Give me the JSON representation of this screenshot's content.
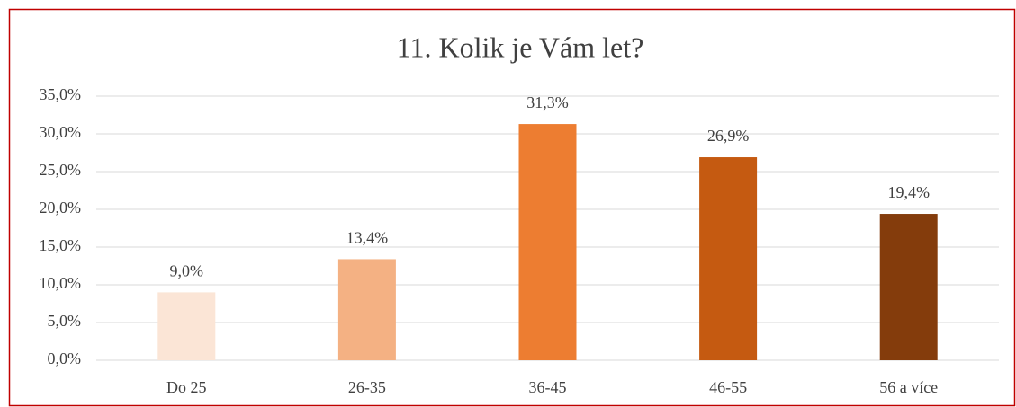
{
  "chart_data": {
    "type": "bar",
    "title": "11. Kolik je Vám let?",
    "categories": [
      "Do 25",
      "26-35",
      "36-45",
      "46-55",
      "56 a více"
    ],
    "values": [
      9.0,
      13.4,
      31.3,
      26.9,
      19.4
    ],
    "value_labels": [
      "9,0%",
      "13,4%",
      "31,3%",
      "26,9%",
      "19,4%"
    ],
    "colors": [
      "#fbe5d6",
      "#f4b183",
      "#ed7d31",
      "#c55a11",
      "#843c0c"
    ],
    "ylim": [
      0,
      35
    ],
    "yticks": [
      {
        "value": 0,
        "label": "0,0%"
      },
      {
        "value": 5,
        "label": "5,0%"
      },
      {
        "value": 10,
        "label": "10,0%"
      },
      {
        "value": 15,
        "label": "15,0%"
      },
      {
        "value": 20,
        "label": "20,0%"
      },
      {
        "value": 25,
        "label": "25,0%"
      },
      {
        "value": 30,
        "label": "30,0%"
      },
      {
        "value": 35,
        "label": "35,0%"
      }
    ],
    "grid": true
  }
}
